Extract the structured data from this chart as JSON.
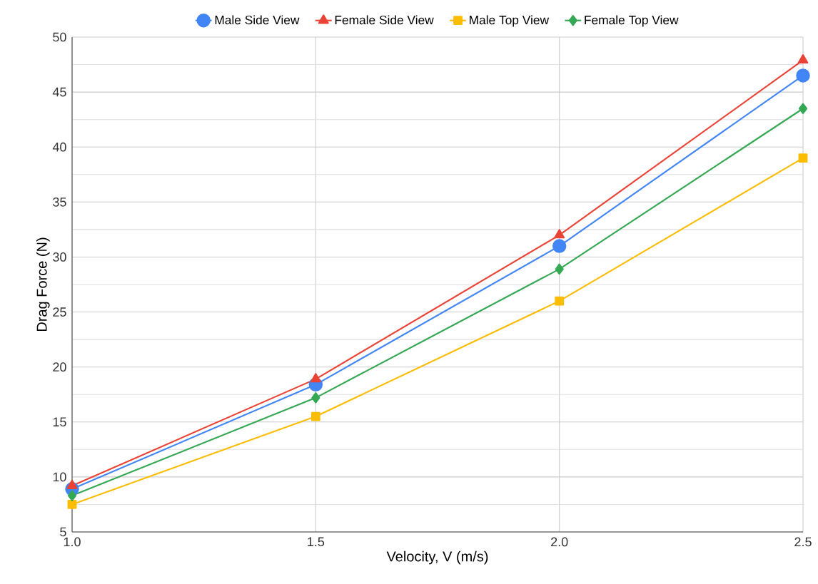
{
  "chart_data": {
    "type": "line",
    "xlabel": "Velocity, V (m/s)",
    "ylabel": "Drag Force (N)",
    "x": [
      1.0,
      1.5,
      2.0,
      2.5
    ],
    "series": [
      {
        "name": "Male Side View",
        "color": "#4285f4",
        "marker": "circle",
        "values": [
          8.9,
          18.4,
          31.0,
          46.5
        ]
      },
      {
        "name": "Female Side View",
        "color": "#ea4335",
        "marker": "triangle",
        "values": [
          9.2,
          18.9,
          32.0,
          47.9
        ]
      },
      {
        "name": "Male Top View",
        "color": "#fbbc04",
        "marker": "square",
        "values": [
          7.5,
          15.5,
          26.0,
          39.0
        ]
      },
      {
        "name": "Female Top View",
        "color": "#34a853",
        "marker": "diamond",
        "values": [
          8.3,
          17.2,
          28.9,
          43.5
        ]
      }
    ],
    "xlim": [
      1.0,
      2.5
    ],
    "ylim": [
      5,
      50
    ],
    "xticks": [
      {
        "value": 1.0,
        "label": "1.0"
      },
      {
        "value": 1.5,
        "label": "1.5"
      },
      {
        "value": 2.0,
        "label": "2.0"
      },
      {
        "value": 2.5,
        "label": "2.5"
      }
    ],
    "yticks": [
      5,
      10,
      15,
      20,
      25,
      30,
      35,
      40,
      45,
      50
    ],
    "grid": true,
    "legend": "top",
    "line_style": "solid"
  }
}
